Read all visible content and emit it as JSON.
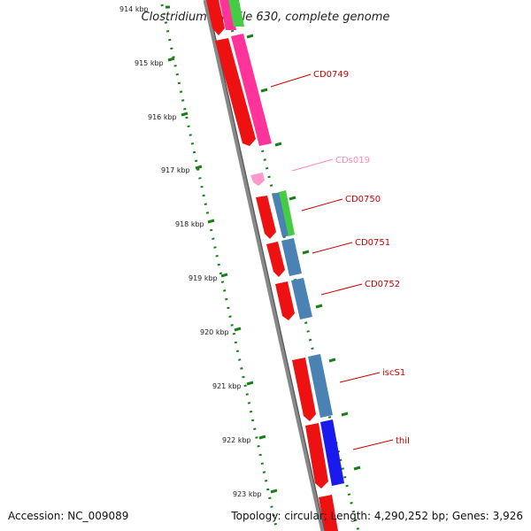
{
  "title": "Clostridium difficile 630, complete genome",
  "footer": {
    "accession": "Accession: NC_009089",
    "topology": "Topology: circular; Length: 4,290,252 bp; Genes: 3,926"
  },
  "colors": {
    "backbone": "#777777",
    "tick": "#1a7f1a",
    "cds_forward": "#ee1111",
    "cds_pink": "#ff3399",
    "cds_green": "#44cc44",
    "cds_steel": "#4a82b4",
    "cds_blue": "#1a1aee",
    "ncrna": "#ff99cc",
    "label_red": "#cc0000",
    "label_pink": "#ff88bb"
  },
  "scale_labels": [
    "914 kbp",
    "915 kbp",
    "916 kbp",
    "917 kbp",
    "918 kbp",
    "919 kbp",
    "920 kbp",
    "921 kbp",
    "922 kbp",
    "923 kbp"
  ],
  "gene_labels": [
    {
      "id": "cd0749",
      "text": "CD0749",
      "color": "label_red"
    },
    {
      "id": "cds019",
      "text": "CDs019",
      "color": "label_pink"
    },
    {
      "id": "cd0750",
      "text": "CD0750",
      "color": "label_red"
    },
    {
      "id": "cd0751",
      "text": "CD0751",
      "color": "label_red"
    },
    {
      "id": "cd0752",
      "text": "CD0752",
      "color": "label_red"
    },
    {
      "id": "iscs1",
      "text": "iscS1",
      "color": "label_red"
    },
    {
      "id": "thil",
      "text": "thiI",
      "color": "label_red"
    }
  ]
}
